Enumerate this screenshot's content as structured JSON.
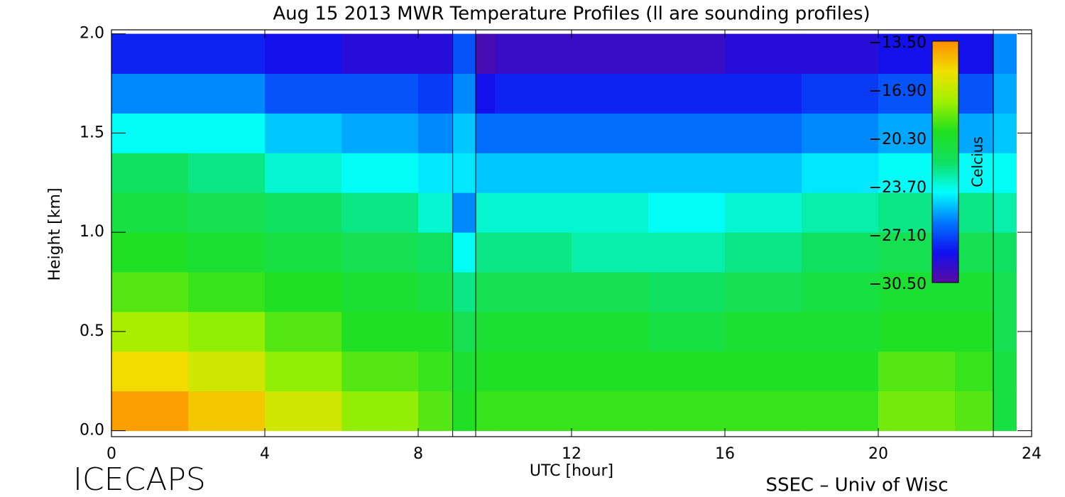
{
  "chart_data": {
    "type": "heatmap",
    "title": "Aug 15 2013 MWR Temperature Profiles (ll are sounding profiles)",
    "xlabel": "UTC [hour]",
    "ylabel": "Height [km]",
    "footer_left": "ICECAPS",
    "footer_right": "SSEC – Univ of Wisc",
    "xlim": [
      0,
      24
    ],
    "xticks": [
      0,
      4,
      8,
      12,
      16,
      20,
      24
    ],
    "ylim": [
      -0.03,
      2.02
    ],
    "yticks": [
      {
        "value": 0,
        "label": "0.0"
      },
      0.5,
      {
        "value": 1,
        "label": "1.0"
      },
      1.5,
      {
        "value": 2,
        "label": "2.0"
      }
    ],
    "xbins": [
      0,
      2,
      4,
      6,
      8,
      8.9,
      9.5,
      10,
      12,
      14,
      16,
      18,
      20,
      22,
      23,
      23.6
    ],
    "ybins": [
      0,
      0.2,
      0.4,
      0.6,
      0.8,
      1.0,
      1.2,
      1.4,
      1.6,
      1.8,
      2.0
    ],
    "z": [
      [
        -14,
        -15.5,
        -17.5,
        -19,
        -20,
        -21,
        -22,
        -24,
        -26,
        -28
      ],
      [
        -15,
        -16.5,
        -18,
        -19.5,
        -20.5,
        -21.5,
        -22.5,
        -24,
        -26,
        -28
      ],
      [
        -16.5,
        -18,
        -19,
        -20,
        -21,
        -22,
        -23.5,
        -25,
        -27,
        -28.5
      ],
      [
        -18,
        -19,
        -20,
        -20.5,
        -21.5,
        -22.5,
        -24,
        -25.5,
        -27,
        -29
      ],
      [
        -19,
        -19.5,
        -20,
        -21,
        -22,
        -23.5,
        -24.5,
        -26,
        -27.5,
        -29
      ],
      [
        -20,
        -20.5,
        -21.5,
        -22.5,
        -24,
        -26,
        -24.5,
        -25,
        -26,
        -27
      ],
      [
        -19.5,
        -20,
        -20.5,
        -21.5,
        -22.5,
        -23.5,
        -25,
        -26.5,
        -28.5,
        -30
      ],
      [
        -19.5,
        -20,
        -20.5,
        -21.5,
        -22.5,
        -23.5,
        -25,
        -26.5,
        -28,
        -29.5
      ],
      [
        -19.5,
        -20,
        -20.5,
        -21.5,
        -23,
        -23.5,
        -25,
        -26.5,
        -28,
        -29.5
      ],
      [
        -19.5,
        -20,
        -21,
        -22,
        -23,
        -24,
        -25,
        -26.5,
        -28,
        -29.5
      ],
      [
        -19.5,
        -20,
        -20.5,
        -21.5,
        -22.5,
        -23.5,
        -25,
        -26.5,
        -28,
        -29
      ],
      [
        -19.5,
        -20,
        -20.5,
        -21,
        -22,
        -23,
        -24.5,
        -26,
        -27.5,
        -29
      ],
      [
        -18.5,
        -19,
        -20,
        -20.5,
        -21.5,
        -22.5,
        -24,
        -25.5,
        -27,
        -28.5
      ],
      [
        -19,
        -19.5,
        -20,
        -20.5,
        -21.5,
        -22.5,
        -24,
        -25.5,
        -27,
        -28.5
      ],
      [
        -21,
        -21,
        -21.5,
        -21.5,
        -22,
        -23,
        -24,
        -25,
        -25.5,
        -26
      ]
    ],
    "sounding_lines": [
      8.9,
      9.5,
      23.0
    ],
    "colormap": [
      "#5a0aa0",
      "#1010f0",
      "#0078ff",
      "#00ffff",
      "#10e060",
      "#20e020",
      "#a0f000",
      "#f0e000",
      "#ff8c00"
    ],
    "colorbar": {
      "label": "Celcius",
      "lim": [
        -30.5,
        -13.5
      ],
      "ticks": [
        {
          "value": -13.5,
          "label": "−13.50"
        },
        {
          "value": -16.9,
          "label": "−16.90"
        },
        {
          "value": -20.3,
          "label": "−20.30"
        },
        {
          "value": -23.7,
          "label": "−23.70"
        },
        {
          "value": -27.1,
          "label": "−27.10"
        },
        {
          "value": -30.5,
          "label": "−30.50"
        }
      ]
    }
  }
}
